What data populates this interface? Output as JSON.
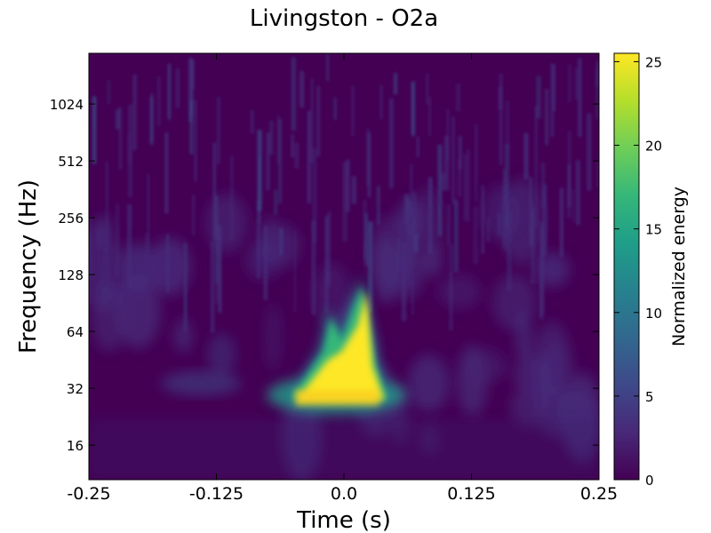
{
  "chart_data": {
    "type": "heatmap",
    "title": "Livingston - O2a",
    "xlabel": "Time (s)",
    "ylabel": "Frequency (Hz)",
    "xlim": [
      -0.25,
      0.25
    ],
    "ylim": [
      10.5,
      1900
    ],
    "yscale": "log2",
    "x_ticks": [
      {
        "value": -0.25,
        "label": "-0.25"
      },
      {
        "value": -0.125,
        "label": "-0.125"
      },
      {
        "value": 0.0,
        "label": "0.0"
      },
      {
        "value": 0.125,
        "label": "0.125"
      },
      {
        "value": 0.25,
        "label": "0.25"
      }
    ],
    "y_ticks": [
      {
        "value": 16,
        "label": "16"
      },
      {
        "value": 32,
        "label": "32"
      },
      {
        "value": 64,
        "label": "64"
      },
      {
        "value": 128,
        "label": "128"
      },
      {
        "value": 256,
        "label": "256"
      },
      {
        "value": 512,
        "label": "512"
      },
      {
        "value": 1024,
        "label": "1024"
      }
    ],
    "colorbar": {
      "label": "Normalized energy",
      "range": [
        0,
        25.5
      ],
      "ticks": [
        {
          "value": 0,
          "label": "0"
        },
        {
          "value": 5,
          "label": "5"
        },
        {
          "value": 10,
          "label": "10"
        },
        {
          "value": 15,
          "label": "15"
        },
        {
          "value": 20,
          "label": "20"
        },
        {
          "value": 25,
          "label": "25"
        }
      ],
      "colormap": [
        "#440154",
        "#482878",
        "#3e4989",
        "#31688e",
        "#26828e",
        "#1f9e89",
        "#35b779",
        "#6ece58",
        "#b5de2b",
        "#fde725"
      ]
    },
    "features": [
      {
        "name": "chirp",
        "t_start": -0.06,
        "t_end": 0.045,
        "f_low": 26,
        "f_high": 125,
        "peak_energy": 25.5
      }
    ]
  }
}
